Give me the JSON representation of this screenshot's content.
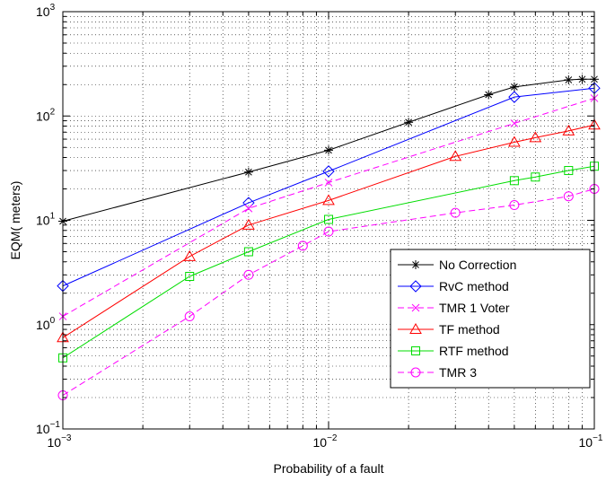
{
  "chart_data": {
    "type": "line",
    "xscale": "log",
    "yscale": "log",
    "xlim": [
      0.001,
      0.1
    ],
    "ylim": [
      0.1,
      1000
    ],
    "grid": true,
    "legend_position": "bottom-right",
    "xlabel": "Probability of a fault",
    "ylabel": "EQM( meters)",
    "x_ticks": [
      {
        "base": "10",
        "exp": "−3"
      },
      {
        "base": "10",
        "exp": "−2"
      },
      {
        "base": "10",
        "exp": "−1"
      }
    ],
    "y_ticks": [
      {
        "base": "10",
        "exp": "−1"
      },
      {
        "base": "10",
        "exp": "0"
      },
      {
        "base": "10",
        "exp": "1"
      },
      {
        "base": "10",
        "exp": "2"
      },
      {
        "base": "10",
        "exp": "3"
      }
    ],
    "series": [
      {
        "name": "No Correction",
        "color": "#000000",
        "dash": "solid",
        "marker": "asterisk",
        "x": [
          0.001,
          0.005,
          0.01,
          0.02,
          0.04,
          0.05,
          0.08,
          0.09,
          0.1
        ],
        "y": [
          9.8,
          29,
          47,
          87,
          160,
          190,
          222,
          225,
          225
        ]
      },
      {
        "name": "RvC method",
        "color": "#0000ff",
        "dash": "solid",
        "marker": "diamond",
        "x": [
          0.001,
          0.005,
          0.01,
          0.05,
          0.1
        ],
        "y": [
          2.35,
          14.7,
          29.5,
          152,
          185
        ]
      },
      {
        "name": "TMR 1 Voter",
        "color": "#ff00ff",
        "dash": "dashed",
        "marker": "x",
        "x": [
          0.001,
          0.005,
          0.01,
          0.05,
          0.1
        ],
        "y": [
          1.2,
          13,
          23,
          85,
          148
        ]
      },
      {
        "name": "TF method",
        "color": "#ff0000",
        "dash": "solid",
        "marker": "triangle",
        "x": [
          0.001,
          0.003,
          0.005,
          0.01,
          0.03,
          0.05,
          0.06,
          0.08,
          0.1
        ],
        "y": [
          0.75,
          4.5,
          9,
          15.5,
          41,
          56,
          62,
          72,
          82
        ]
      },
      {
        "name": "RTF method",
        "color": "#00dd00",
        "dash": "solid",
        "marker": "square",
        "x": [
          0.001,
          0.003,
          0.005,
          0.01,
          0.05,
          0.06,
          0.08,
          0.1
        ],
        "y": [
          0.48,
          2.9,
          5,
          10.2,
          24,
          26,
          30,
          33
        ]
      },
      {
        "name": "TMR 3",
        "color": "#ff00ff",
        "dash": "dashed",
        "marker": "circle",
        "x": [
          0.001,
          0.003,
          0.005,
          0.008,
          0.01,
          0.03,
          0.05,
          0.08,
          0.1
        ],
        "y": [
          0.21,
          1.2,
          3,
          5.7,
          7.8,
          11.8,
          14,
          17,
          20
        ]
      }
    ]
  }
}
